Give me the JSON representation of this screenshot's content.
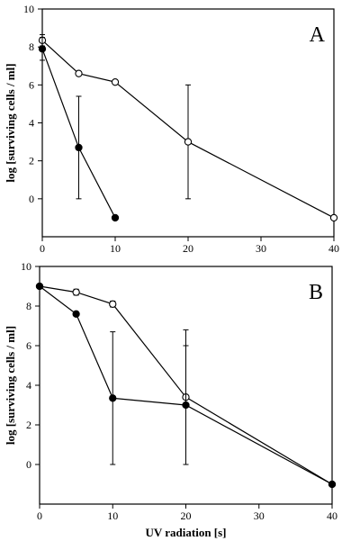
{
  "chart_data": [
    {
      "type": "line",
      "panel_label": "A",
      "ylabel": "log [surviving cells / ml]",
      "xlabel": "",
      "xlim": [
        0,
        40
      ],
      "ylim": [
        -2,
        10
      ],
      "x_ticks": [
        0,
        10,
        20,
        30,
        40
      ],
      "y_ticks": [
        0,
        2,
        4,
        6,
        8,
        10
      ],
      "grid": false,
      "series": [
        {
          "marker": "open-circle",
          "x": [
            0,
            5,
            10,
            20,
            40
          ],
          "values": [
            8.35,
            6.6,
            6.15,
            3.0,
            -1.0
          ],
          "error": [
            0.3,
            0.1,
            0.1,
            3.0,
            0.0
          ]
        },
        {
          "marker": "filled-circle",
          "x": [
            0,
            5,
            10
          ],
          "values": [
            7.9,
            2.7,
            -1.0
          ],
          "error": [
            0.6,
            2.7,
            0.0
          ]
        }
      ]
    },
    {
      "type": "line",
      "panel_label": "B",
      "ylabel": "log [surviving cells / ml]",
      "xlabel": "UV radiation [s]",
      "xlim": [
        0,
        40
      ],
      "ylim": [
        -2,
        10
      ],
      "x_ticks": [
        0,
        10,
        20,
        30,
        40
      ],
      "y_ticks": [
        0,
        2,
        4,
        6,
        8,
        10
      ],
      "grid": false,
      "series": [
        {
          "marker": "open-circle",
          "x": [
            0,
            5,
            10,
            20,
            40
          ],
          "values": [
            9.0,
            8.7,
            8.1,
            3.4,
            -1.0
          ],
          "error": [
            0.1,
            0.15,
            0.15,
            3.4,
            0.0
          ]
        },
        {
          "marker": "filled-circle",
          "x": [
            0,
            5,
            10,
            20,
            40
          ],
          "values": [
            9.0,
            7.6,
            3.35,
            3.0,
            -1.0
          ],
          "error": [
            0.0,
            0.0,
            3.35,
            3.0,
            0.0
          ]
        }
      ]
    }
  ]
}
